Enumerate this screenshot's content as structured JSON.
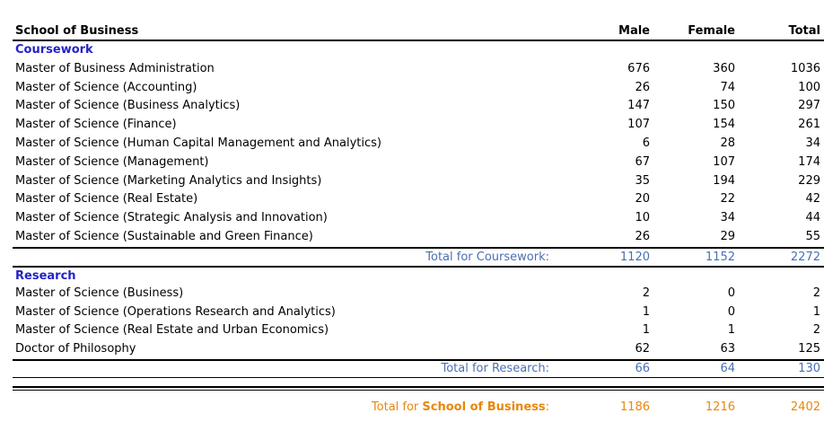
{
  "header": {
    "title": "School of Business",
    "col_male": "Male",
    "col_female": "Female",
    "col_total": "Total"
  },
  "coursework": {
    "title": "Coursework",
    "rows": [
      {
        "name": "Master of Business Administration",
        "male": "676",
        "female": "360",
        "total": "1036"
      },
      {
        "name": "Master of Science (Accounting)",
        "male": "26",
        "female": "74",
        "total": "100"
      },
      {
        "name": "Master of Science (Business Analytics)",
        "male": "147",
        "female": "150",
        "total": "297"
      },
      {
        "name": "Master of Science (Finance)",
        "male": "107",
        "female": "154",
        "total": "261"
      },
      {
        "name": "Master of Science (Human Capital Management and Analytics)",
        "male": "6",
        "female": "28",
        "total": "34"
      },
      {
        "name": "Master of Science (Management)",
        "male": "67",
        "female": "107",
        "total": "174"
      },
      {
        "name": "Master of Science (Marketing Analytics and Insights)",
        "male": "35",
        "female": "194",
        "total": "229"
      },
      {
        "name": "Master of Science (Real Estate)",
        "male": "20",
        "female": "22",
        "total": "42"
      },
      {
        "name": "Master of Science (Strategic Analysis and Innovation)",
        "male": "10",
        "female": "34",
        "total": "44"
      },
      {
        "name": "Master of Science (Sustainable and Green Finance)",
        "male": "26",
        "female": "29",
        "total": "55"
      }
    ],
    "total_label": "Total for Coursework:",
    "total_male": "1120",
    "total_female": "1152",
    "total_total": "2272"
  },
  "research": {
    "title": "Research",
    "rows": [
      {
        "name": "Master of Science (Business)",
        "male": "2",
        "female": "0",
        "total": "2"
      },
      {
        "name": "Master of Science (Operations Research and Analytics)",
        "male": "1",
        "female": "0",
        "total": "1"
      },
      {
        "name": "Master of Science (Real Estate and Urban Economics)",
        "male": "1",
        "female": "1",
        "total": "2"
      },
      {
        "name": "Doctor of Philosophy",
        "male": "62",
        "female": "63",
        "total": "125"
      }
    ],
    "total_label": "Total for Research:",
    "total_male": "66",
    "total_female": "64",
    "total_total": "130"
  },
  "grand_total": {
    "label_prefix": "Total for ",
    "label_school": "School of Business",
    "label_suffix": ":",
    "male": "1186",
    "female": "1216",
    "total": "2402"
  },
  "colors": {
    "section_title": "#2323c8",
    "subtotal": "#4a6fb5",
    "grand_total": "#e8870d"
  }
}
